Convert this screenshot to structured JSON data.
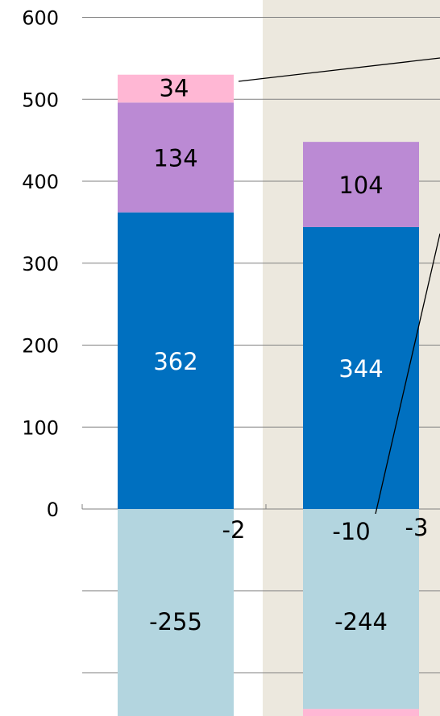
{
  "chart_data": {
    "type": "bar",
    "stacked": true,
    "categories": [
      "",
      ""
    ],
    "ylim": [
      -270,
      600
    ],
    "y_ticks": [
      0,
      100,
      200,
      300,
      400,
      500,
      600
    ],
    "y_tick_labels": [
      "0",
      "100",
      "200",
      "300",
      "400",
      "500",
      "600"
    ],
    "grid": "horizontal",
    "series": [
      {
        "color": "#b3d5df",
        "values": [
          -255,
          -244
        ],
        "labels": [
          "-255",
          "-244"
        ],
        "label_color": "#000000"
      },
      {
        "color": "#0070c0",
        "values": [
          362,
          344
        ],
        "labels": [
          "362",
          "344"
        ],
        "label_color": "#ffffff"
      },
      {
        "color": "#bb8ad4",
        "values": [
          134,
          104
        ],
        "labels": [
          "134",
          "104"
        ],
        "label_color": "#000000"
      },
      {
        "color": "#ffb7d4",
        "values": [
          34,
          -10
        ],
        "labels": [
          "34",
          "-10"
        ],
        "label_color": "#000000"
      }
    ],
    "extra_labels": [
      {
        "text": "-2",
        "category": 0,
        "y": -2
      },
      {
        "text": "-3",
        "category": 1,
        "y": -3
      }
    ],
    "highlight_region_color": "#ece8de",
    "gridline_color": "#808080"
  }
}
